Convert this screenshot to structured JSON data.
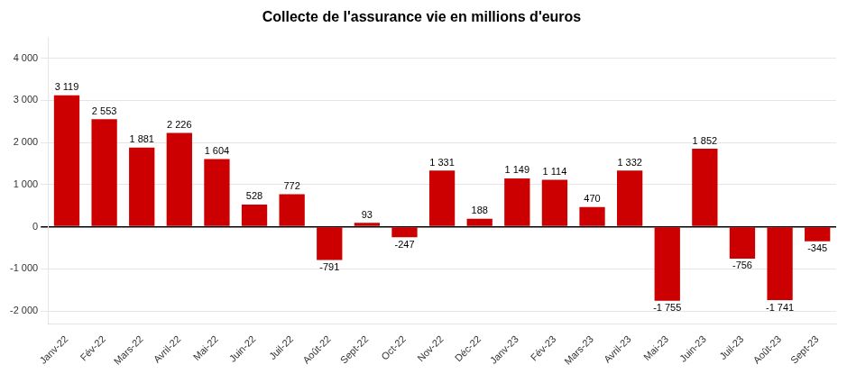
{
  "chart_data": {
    "type": "bar",
    "title": "Collecte de l'assurance vie en millions d'euros",
    "categories": [
      "Janv-22",
      "Fév-22",
      "Mars-22",
      "Avril-22",
      "Mai-22",
      "Juin-22",
      "Juil-22",
      "Août-22",
      "Sept-22",
      "Oct-22",
      "Nov-22",
      "Déc-22",
      "Janv-23",
      "Fév-23",
      "Mars-23",
      "Avril-23",
      "Mai-23",
      "Juin-23",
      "Juil-23",
      "Août-23",
      "Sept-23"
    ],
    "values": [
      3119,
      2553,
      1881,
      2226,
      1604,
      528,
      772,
      -791,
      93,
      -247,
      1331,
      188,
      1149,
      1114,
      470,
      1332,
      -1755,
      1852,
      -756,
      -1741,
      -345
    ],
    "value_labels": [
      "3 119",
      "2 553",
      "1 881",
      "2 226",
      "1 604",
      "528",
      "772",
      "-791",
      "93",
      "-247",
      "1 331",
      "188",
      "1 149",
      "1 114",
      "470",
      "1 332",
      "-1 755",
      "1 852",
      "-756",
      "-1 741",
      "-345"
    ],
    "color": "#CC0000",
    "ylim": [
      -2300,
      4500
    ],
    "yticks": [
      {
        "value": -2000,
        "label": "-2 000"
      },
      {
        "value": -1000,
        "label": "-1 000"
      },
      0,
      {
        "value": 1000,
        "label": "1 000"
      },
      {
        "value": 2000,
        "label": "2 000"
      },
      {
        "value": 3000,
        "label": "3 000"
      },
      {
        "value": 4000,
        "label": "4 000"
      }
    ],
    "grid": true,
    "data_labels": true
  }
}
